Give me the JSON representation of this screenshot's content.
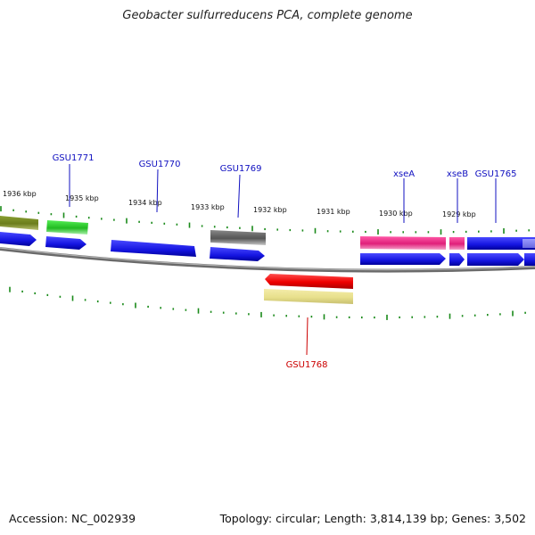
{
  "title": "Geobacter sulfurreducens PCA, complete genome",
  "footer": {
    "accession": "Accession: NC_002939",
    "summary": "Topology: circular; Length: 3,814,139 bp; Genes: 3,502"
  },
  "colors": {
    "label_blue": "#1010c0",
    "label_red": "#cc0000",
    "tick_green": "#1a8a1a",
    "backbone": "#8a8a8a",
    "cds_blue": "#1414e0",
    "olive": "#6b7d1c",
    "green": "#33cc33",
    "gray": "#666666",
    "magenta": "#e0207a",
    "red": "#ee0000",
    "khaki": "#e8e08c"
  },
  "tick_labels": [
    {
      "text": "1936 kbp"
    },
    {
      "text": "1935 kbp"
    },
    {
      "text": "1934 kbp"
    },
    {
      "text": "1933 kbp"
    },
    {
      "text": "1932 kbp"
    },
    {
      "text": "1931 kbp"
    },
    {
      "text": "1930 kbp"
    },
    {
      "text": "1929 kbp"
    }
  ],
  "gene_labels": [
    {
      "text": "GSU1771",
      "color": "blue"
    },
    {
      "text": "GSU1770",
      "color": "blue"
    },
    {
      "text": "GSU1769",
      "color": "blue"
    },
    {
      "text": "xseA",
      "color": "blue"
    },
    {
      "text": "xseB",
      "color": "blue"
    },
    {
      "text": "GSU1765",
      "color": "blue"
    },
    {
      "text": "GSU1768",
      "color": "red"
    }
  ]
}
